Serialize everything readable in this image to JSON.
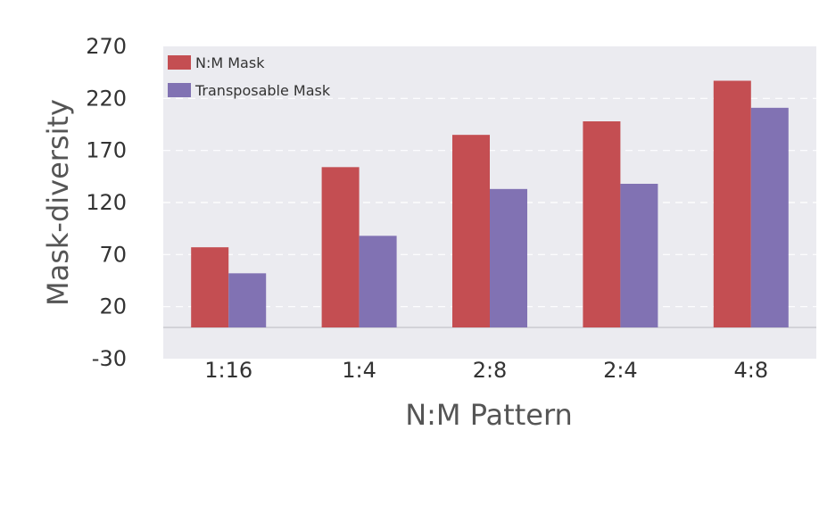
{
  "chart_data": {
    "type": "bar",
    "title": "",
    "xlabel": "N:M Pattern",
    "ylabel": "Mask-diversity",
    "ylim": [
      -30,
      270
    ],
    "yticks": [
      -30,
      20,
      70,
      120,
      170,
      220,
      270
    ],
    "categories": [
      "1:16",
      "1:4",
      "2:8",
      "2:4",
      "4:8"
    ],
    "series": [
      {
        "name": "N:M Mask",
        "color": "#c44e52",
        "values": [
          77,
          154,
          185,
          198,
          237
        ]
      },
      {
        "name": "Transposable Mask",
        "color": "#8172b3",
        "values": [
          52,
          88,
          133,
          138,
          211
        ]
      }
    ],
    "grid": true,
    "legend_position": "top-left"
  }
}
